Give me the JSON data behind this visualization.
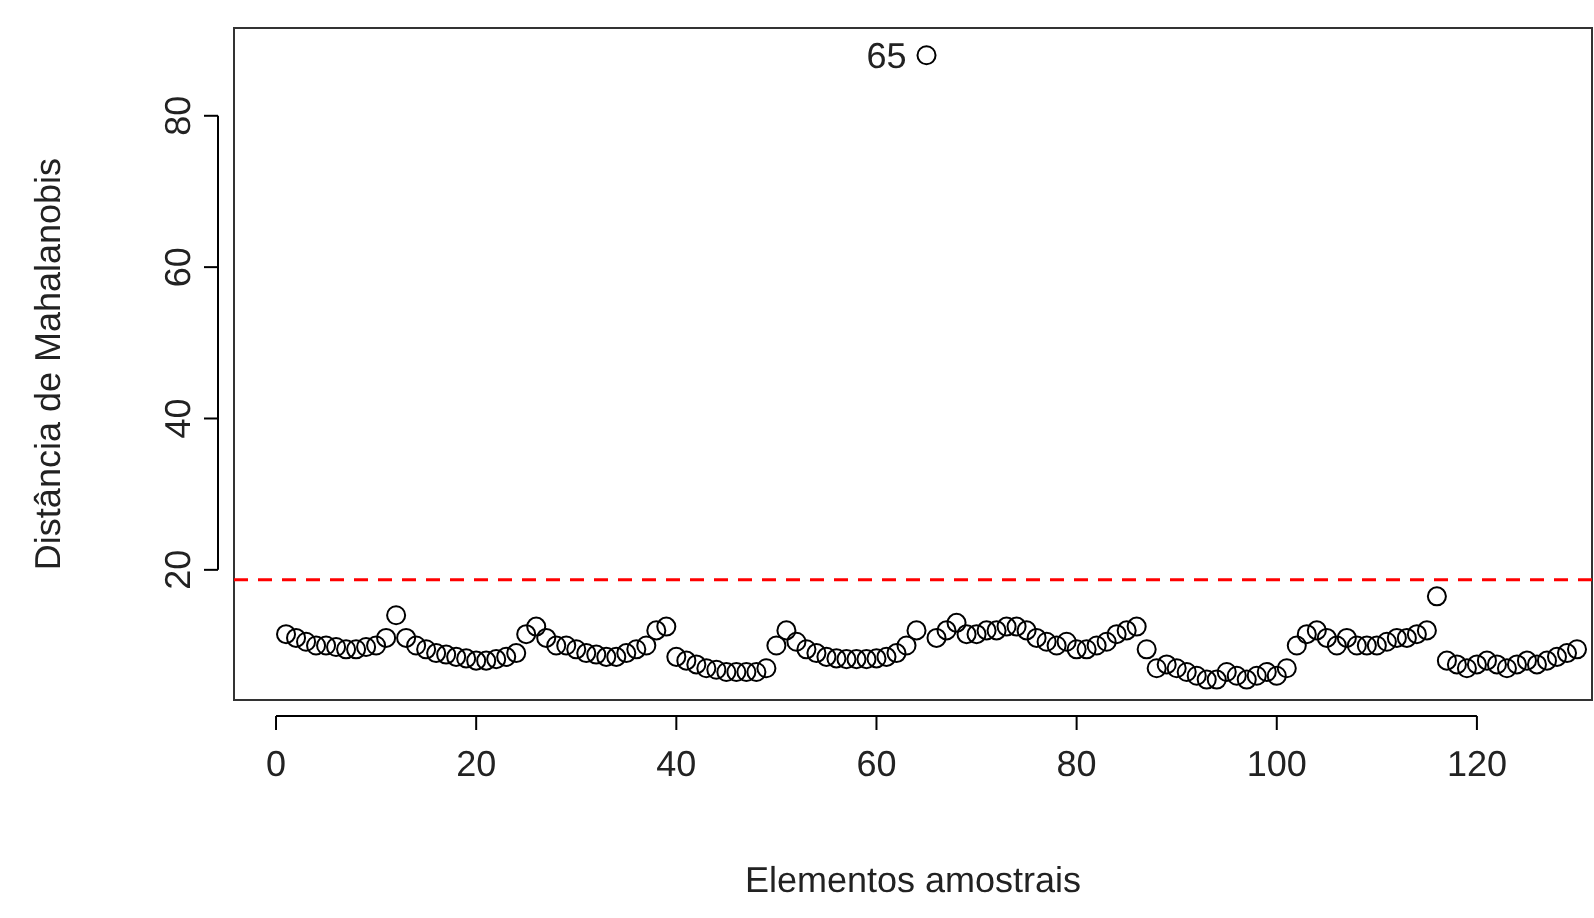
{
  "chart_data": {
    "type": "scatter",
    "xlabel": "Elementos amostrais",
    "ylabel": "Distância de Mahalanobis",
    "x": [
      1,
      2,
      3,
      4,
      5,
      6,
      7,
      8,
      9,
      10,
      11,
      12,
      13,
      14,
      15,
      16,
      17,
      18,
      19,
      20,
      21,
      22,
      23,
      24,
      25,
      26,
      27,
      28,
      29,
      30,
      31,
      32,
      33,
      34,
      35,
      36,
      37,
      38,
      39,
      40,
      41,
      42,
      43,
      44,
      45,
      46,
      47,
      48,
      49,
      50,
      51,
      52,
      53,
      54,
      55,
      56,
      57,
      58,
      59,
      60,
      61,
      62,
      63,
      64,
      65,
      66,
      67,
      68,
      69,
      70,
      71,
      72,
      73,
      74,
      75,
      76,
      77,
      78,
      79,
      80,
      81,
      82,
      83,
      84,
      85,
      86,
      87,
      88,
      89,
      90,
      91,
      92,
      93,
      94,
      95,
      96,
      97,
      98,
      99,
      100,
      101,
      102,
      103,
      104,
      105,
      106,
      107,
      108,
      109,
      110,
      111,
      112,
      113,
      114,
      115,
      116,
      117,
      118,
      119,
      120,
      121,
      122,
      123,
      124,
      125,
      126,
      127,
      128,
      129,
      130
    ],
    "series": [
      {
        "color": "#000000",
        "values": [
          11.5,
          11,
          10.5,
          10,
          10,
          9.8,
          9.5,
          9.5,
          9.8,
          10,
          11,
          14,
          11,
          10,
          9.5,
          9,
          8.8,
          8.5,
          8.3,
          8,
          8,
          8.2,
          8.5,
          9,
          11.5,
          12.5,
          11,
          10,
          10,
          9.5,
          9,
          8.8,
          8.5,
          8.5,
          9,
          9.5,
          10,
          12,
          12.5,
          8.5,
          8,
          7.5,
          7,
          6.8,
          6.5,
          6.5,
          6.5,
          6.5,
          7,
          10,
          12,
          10.5,
          9.5,
          9,
          8.5,
          8.3,
          8.2,
          8.2,
          8.2,
          8.3,
          8.5,
          9,
          10,
          12,
          88,
          11,
          12,
          13,
          11.5,
          11.5,
          12,
          12,
          12.5,
          12.5,
          12,
          11,
          10.5,
          10,
          10.5,
          9.5,
          9.5,
          10,
          10.5,
          11.5,
          12,
          12.5,
          9.5,
          7,
          7.5,
          7,
          6.5,
          6,
          5.5,
          5.5,
          6.5,
          6,
          5.5,
          6,
          6.5,
          6,
          7,
          10,
          11.5,
          12,
          11,
          10,
          11,
          10,
          10,
          10,
          10.5,
          11,
          11,
          11.5,
          12,
          16.5,
          8,
          7.5,
          7,
          7.5,
          8,
          7.5,
          7,
          7.5,
          8,
          7.5,
          8,
          8.5,
          9,
          9.5
        ]
      }
    ],
    "marker": "circle",
    "xlim": [
      -4.2,
      131.5
    ],
    "xticks": [
      0,
      20,
      40,
      60,
      80,
      100,
      120
    ],
    "ylim": [
      2.8,
      91.6
    ],
    "yticks": [
      20,
      40,
      60,
      80
    ],
    "ref_lines": [
      {
        "axis": "y",
        "value": 18.7,
        "color": "#ff0000",
        "line_style": "dashed"
      }
    ],
    "annotations": [
      {
        "text": "65",
        "x": 65,
        "y": 88
      }
    ]
  }
}
